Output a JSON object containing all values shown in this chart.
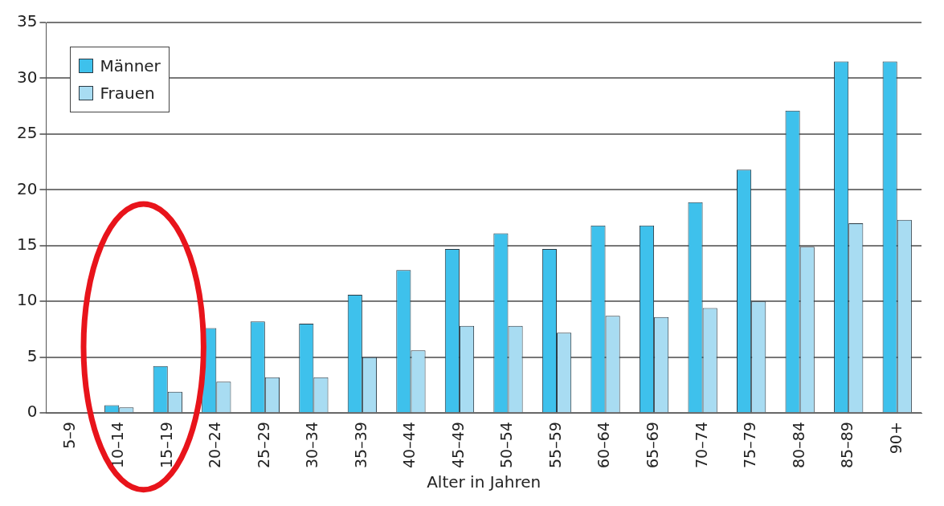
{
  "chart_data": {
    "type": "bar",
    "xlabel": "Alter in Jahren",
    "categories": [
      "5–9",
      "10–14",
      "15–19",
      "20–24",
      "25–29",
      "30–34",
      "35–39",
      "40–44",
      "45–49",
      "50–54",
      "55–59",
      "60–64",
      "65–69",
      "70–74",
      "75–79",
      "80–84",
      "85–89",
      "90+"
    ],
    "series": [
      {
        "name": "Männer",
        "color": "#3ec1ec",
        "values": [
          0,
          0.7,
          4.2,
          7.6,
          8.2,
          8.0,
          10.6,
          12.8,
          14.7,
          16.1,
          14.7,
          16.8,
          16.8,
          18.9,
          21.8,
          27.1,
          31.5,
          31.5
        ]
      },
      {
        "name": "Frauen",
        "color": "#a8dcf2",
        "values": [
          0,
          0.5,
          1.9,
          2.8,
          3.2,
          3.2,
          5.0,
          5.6,
          7.8,
          7.8,
          7.2,
          8.7,
          8.6,
          9.4,
          10.0,
          14.9,
          17.0,
          17.3
        ]
      }
    ],
    "ylim": [
      0,
      35
    ],
    "yticks": [
      0,
      5,
      10,
      15,
      20,
      25,
      30,
      35
    ],
    "grid": "y",
    "legend": "top left"
  }
}
